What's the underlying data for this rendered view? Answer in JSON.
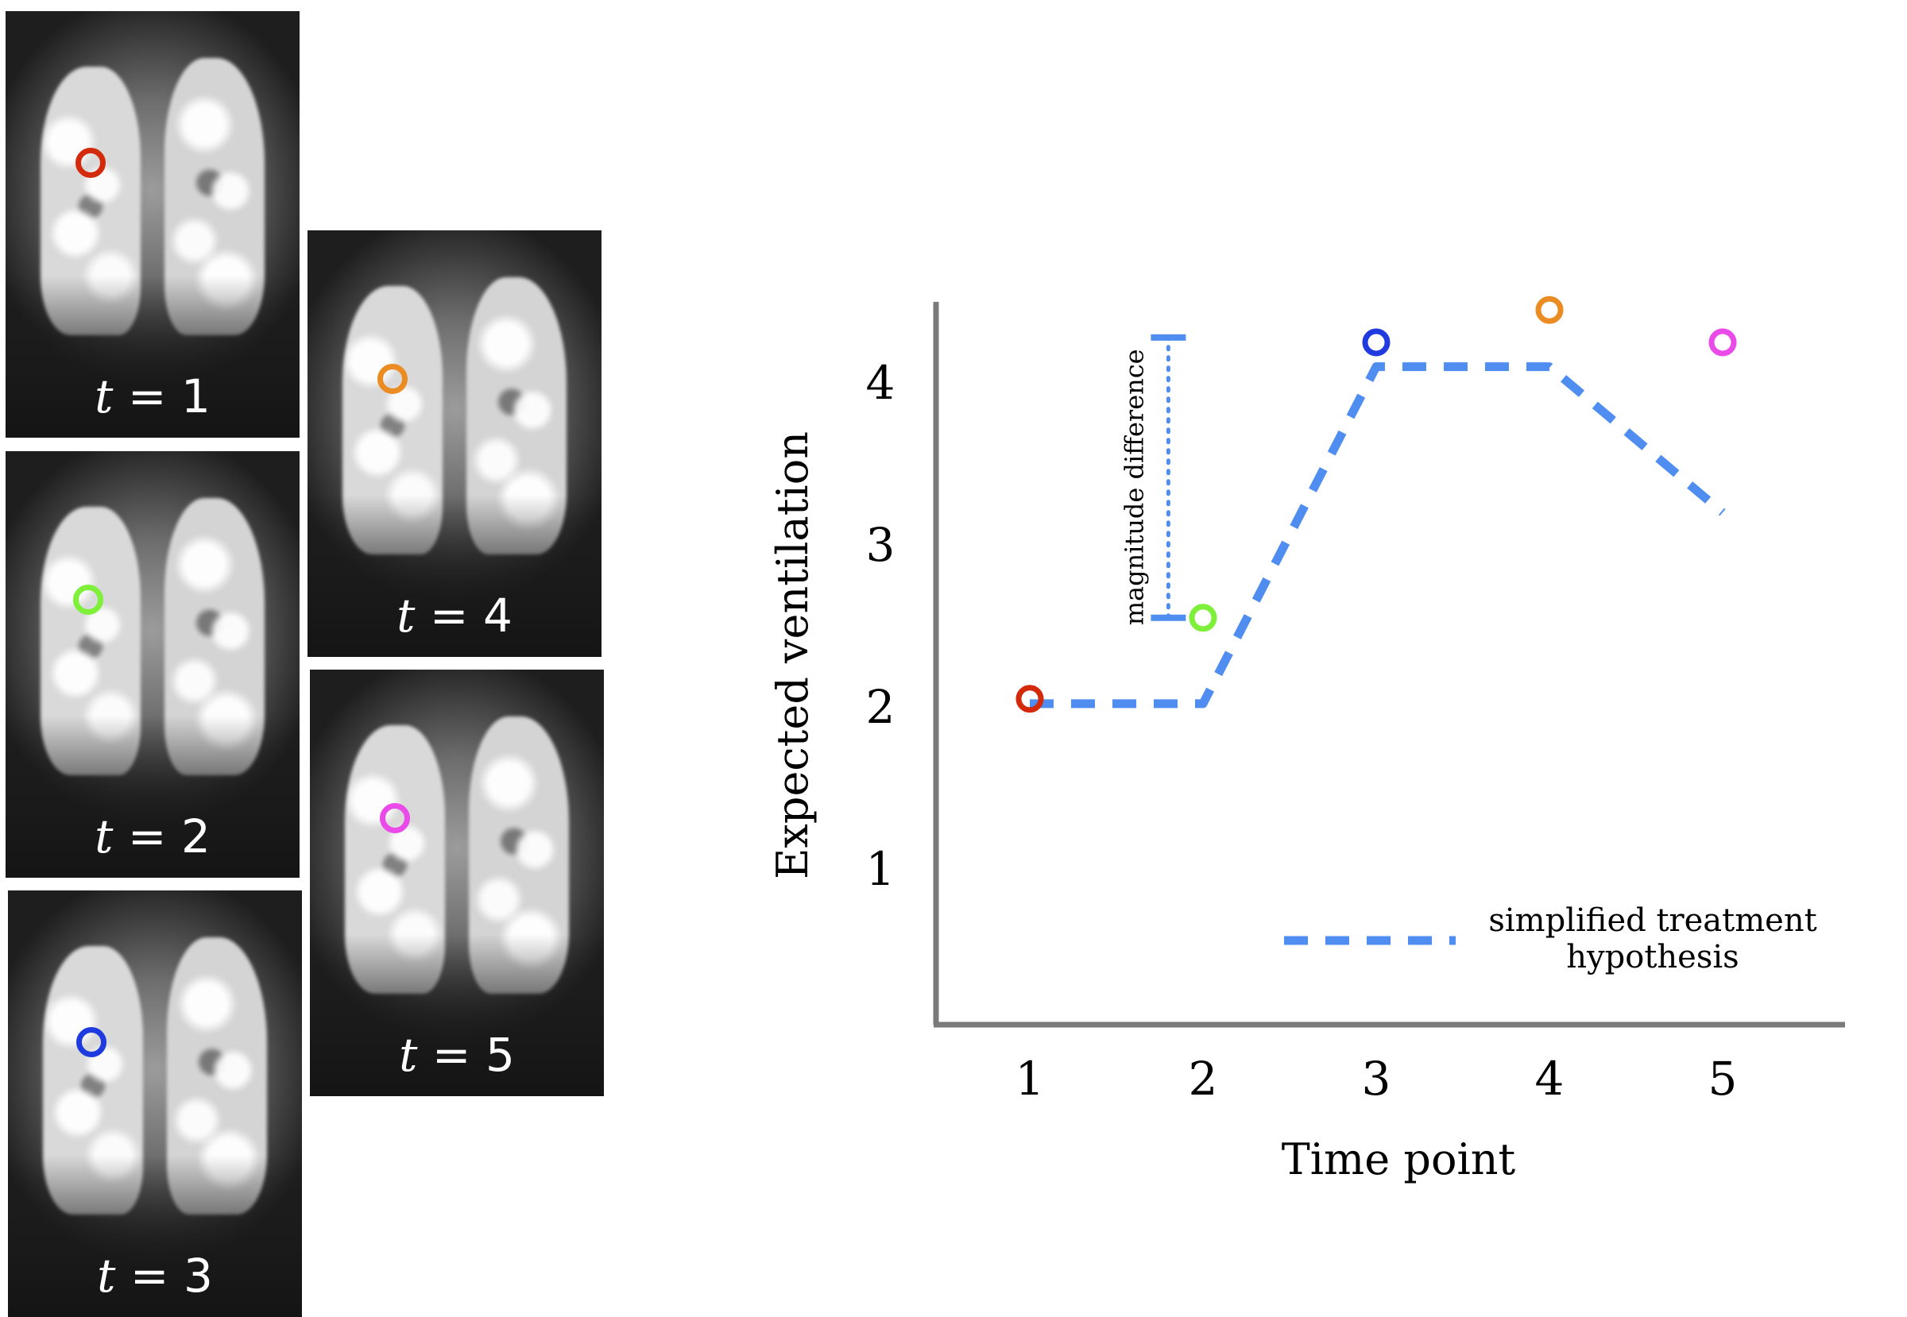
{
  "scans": [
    {
      "label_var": "t",
      "label_eq": " = ",
      "label_num": "1",
      "marker_color": "#d42a0c"
    },
    {
      "label_var": "t",
      "label_eq": " = ",
      "label_num": "2",
      "marker_color": "#7ef03a"
    },
    {
      "label_var": "t",
      "label_eq": " = ",
      "label_num": "3",
      "marker_color": "#1f3be0"
    },
    {
      "label_var": "t",
      "label_eq": " = ",
      "label_num": "4",
      "marker_color": "#ea8c22"
    },
    {
      "label_var": "t",
      "label_eq": " = ",
      "label_num": "5",
      "marker_color": "#e94ae8"
    }
  ],
  "chart_data": {
    "type": "scatter",
    "title": "",
    "xlabel": "Time point",
    "ylabel": "Expected ventilation",
    "xlim": [
      0.35,
      5.55
    ],
    "ylim": [
      -0.9,
      4.5
    ],
    "x_ticks": [
      "1",
      "2",
      "3",
      "4",
      "5"
    ],
    "y_ticks": [
      "1",
      "2",
      "3",
      "4"
    ],
    "grid": false,
    "points": [
      {
        "x": 1,
        "y": 2.05,
        "color": "#d42a0c"
      },
      {
        "x": 2,
        "y": 2.55,
        "color": "#7ef03a"
      },
      {
        "x": 3,
        "y": 4.25,
        "color": "#1f3be0"
      },
      {
        "x": 4,
        "y": 4.45,
        "color": "#ea8c22"
      },
      {
        "x": 5,
        "y": 4.25,
        "color": "#e94ae8"
      }
    ],
    "series": [
      {
        "name": "simplified treatment hypothesis",
        "style": "dashed",
        "color": "#4f8ef0",
        "x": [
          1,
          2,
          3,
          4,
          5
        ],
        "y": [
          2.02,
          2.02,
          4.1,
          4.1,
          3.2
        ]
      }
    ],
    "annotations": [
      {
        "text": "magnitude difference",
        "x": 1.8,
        "y_from": 2.55,
        "y_to": 4.28
      }
    ],
    "legend": {
      "placement": "bottom-right",
      "line1": "simplified treatment",
      "line2": "hypothesis"
    }
  }
}
